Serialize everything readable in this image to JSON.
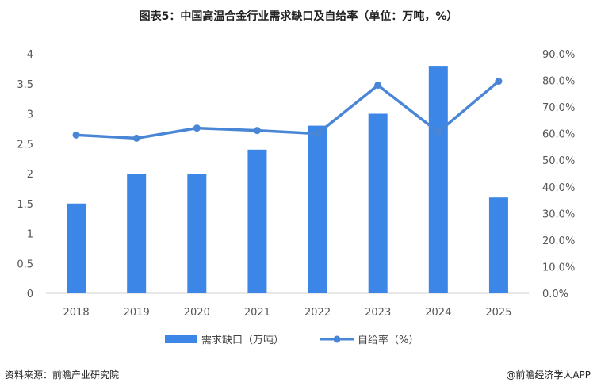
{
  "title": "图表5：中国高温合金行业需求缺口及自给率（单位：万吨，%）",
  "chart_data": {
    "type": "bar",
    "categories": [
      "2018",
      "2019",
      "2020",
      "2021",
      "2022",
      "2023",
      "2024",
      "2025"
    ],
    "series": [
      {
        "name": "需求缺口（万吨）",
        "type": "bar",
        "axis": "left",
        "values": [
          1.5,
          2.0,
          2.0,
          2.4,
          2.8,
          3.0,
          3.8,
          1.6
        ],
        "color": "#3b86e6"
      },
      {
        "name": "自给率（%）",
        "type": "line",
        "axis": "right",
        "values": [
          59.5,
          58.3,
          62.1,
          61.2,
          60.0,
          78.2,
          60.6,
          79.7
        ],
        "color": "#4a86d6"
      }
    ],
    "y_left": {
      "min": 0,
      "max": 4,
      "ticks": [
        "0",
        "0.5",
        "1",
        "1.5",
        "2",
        "2.5",
        "3",
        "3.5",
        "4"
      ]
    },
    "y_right": {
      "min": 0,
      "max": 90,
      "ticks": [
        "0.0%",
        "10.0%",
        "20.0%",
        "30.0%",
        "40.0%",
        "50.0%",
        "60.0%",
        "70.0%",
        "80.0%",
        "90.0%"
      ]
    },
    "grid": false,
    "legend": "bottom"
  },
  "source": "资料来源：前瞻产业研究院",
  "credit": "@前瞻经济学人APP"
}
